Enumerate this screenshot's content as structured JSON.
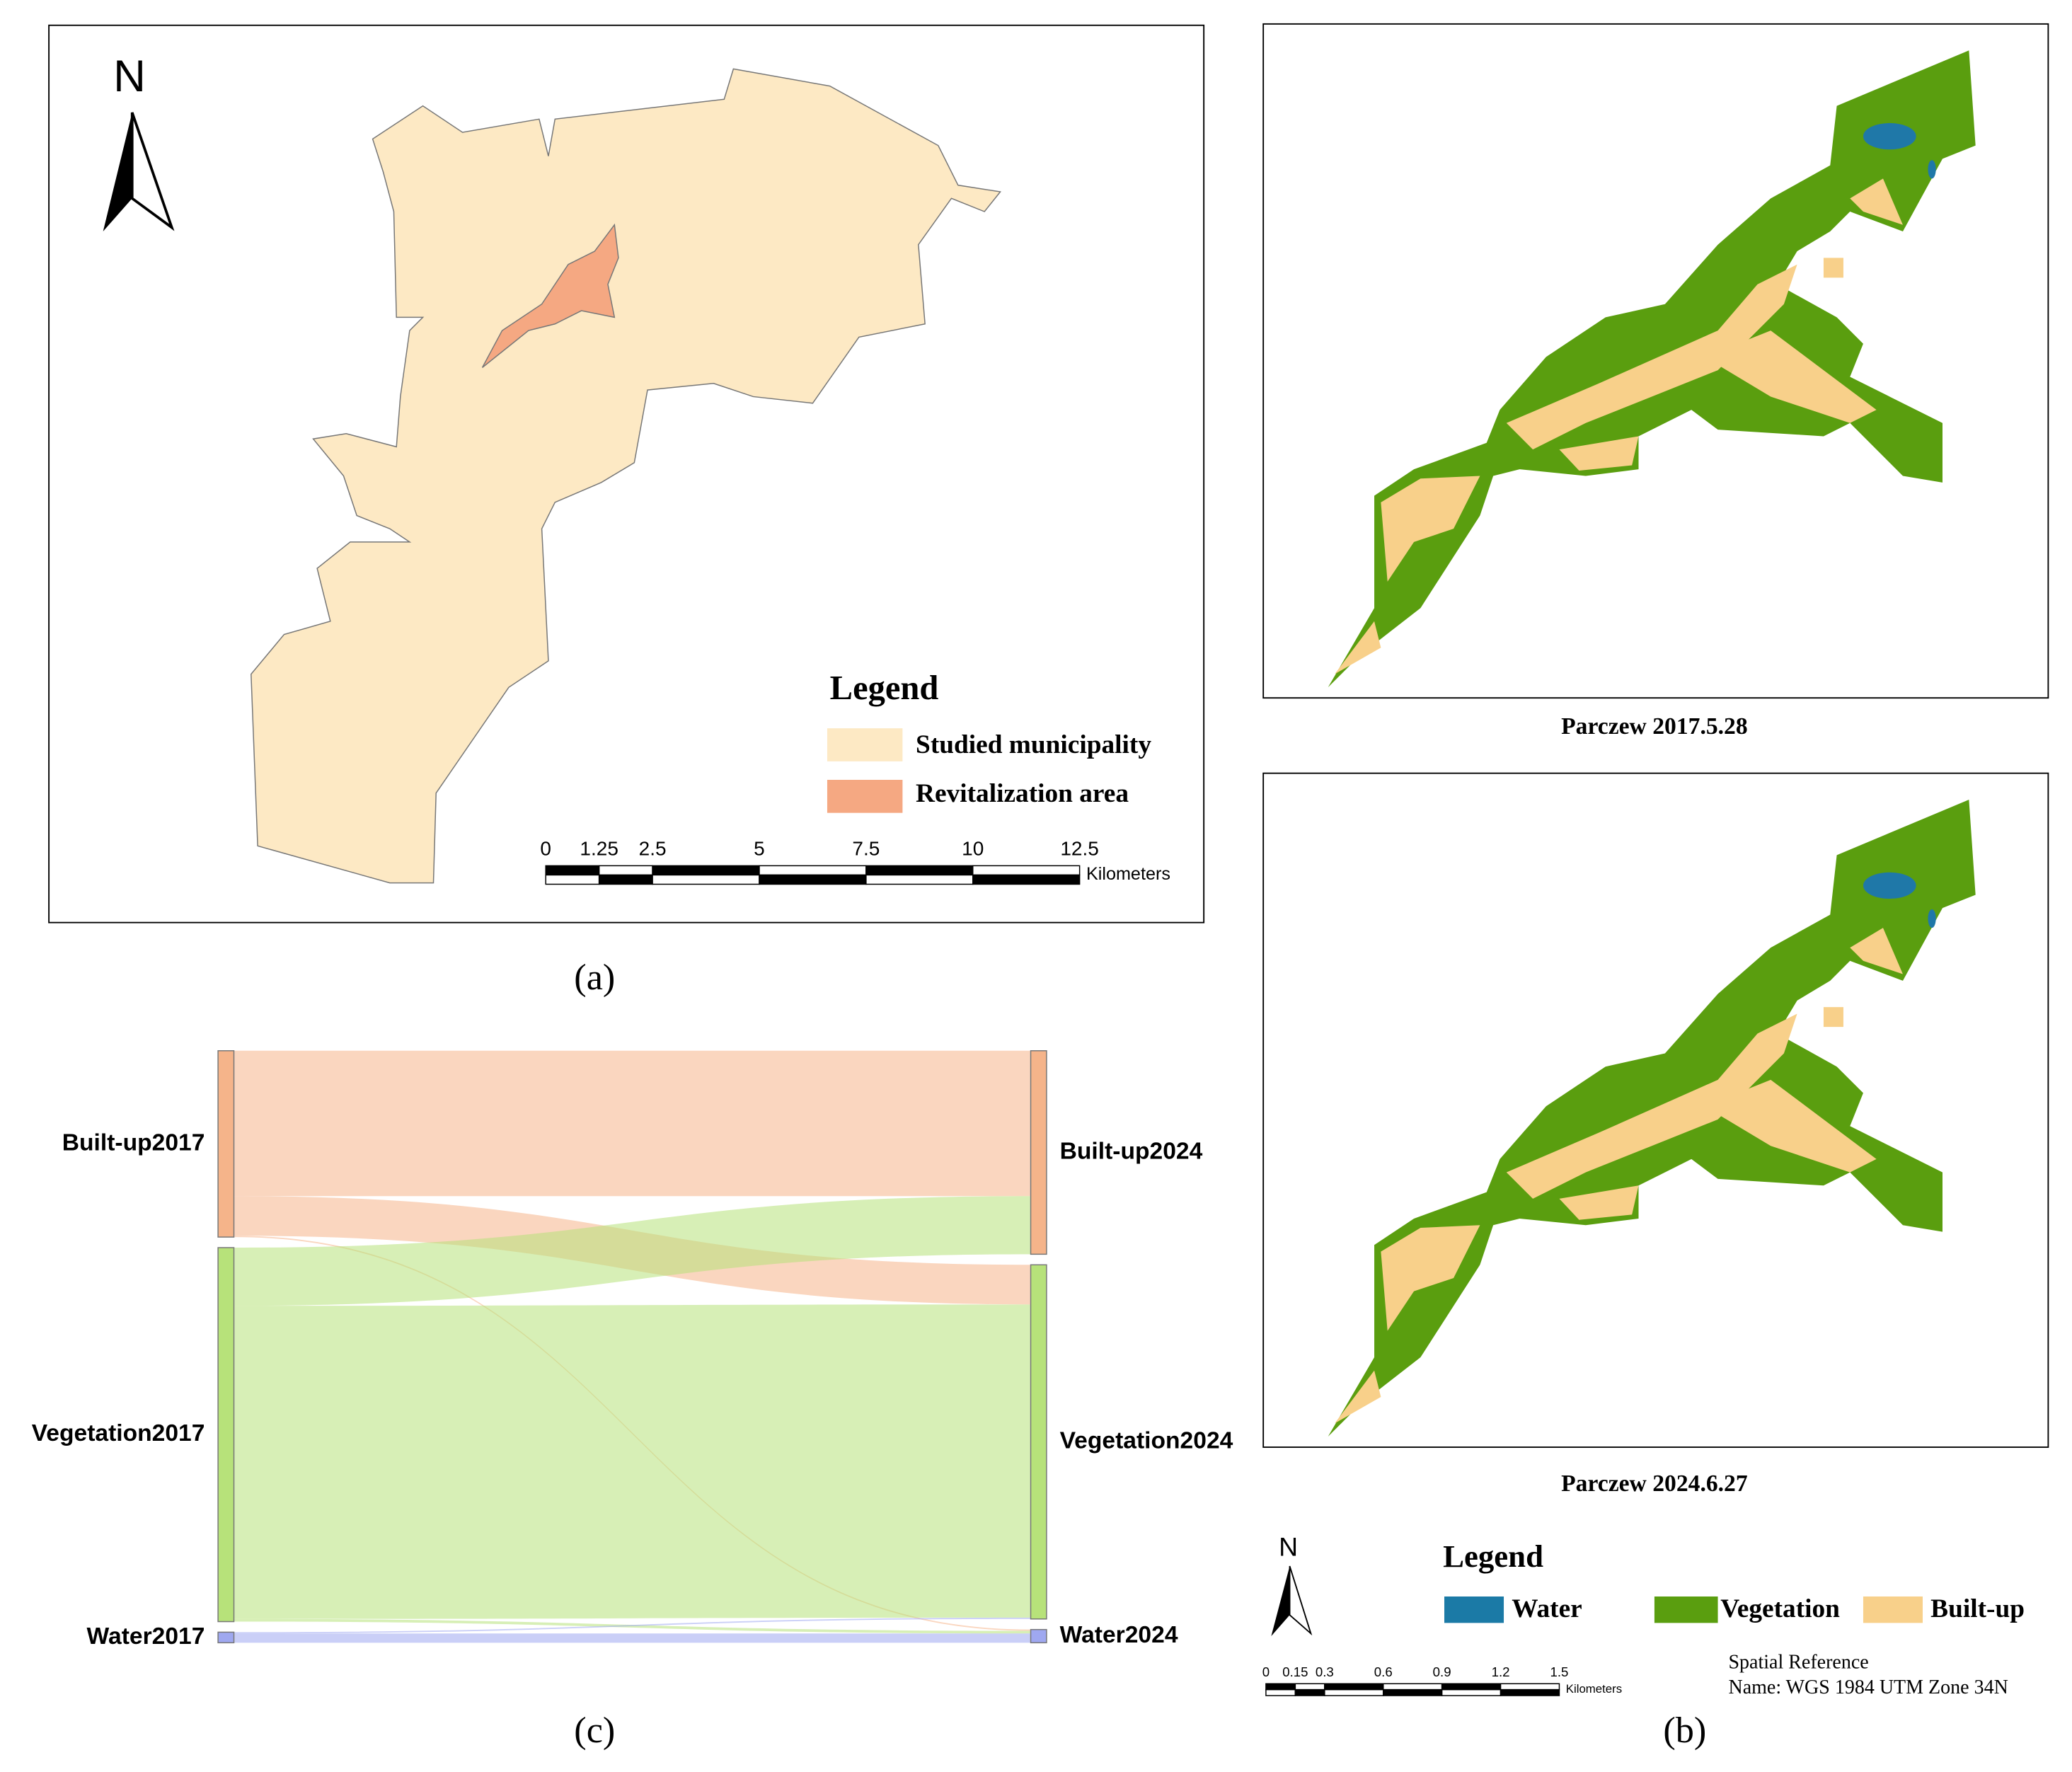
{
  "panel_a": {
    "north": "N",
    "legend_title": "Legend",
    "legend": [
      "Studied municipality",
      "Revitalization area"
    ],
    "scale_ticks": [
      0,
      1.25,
      2.5,
      5,
      7.5,
      10,
      12.5
    ],
    "scale_unit": "Kilometers",
    "caption": "(a)"
  },
  "panel_b": {
    "map_titles": [
      "Parczew 2017.5.28",
      "Parczew 2024.6.27"
    ],
    "north": "N",
    "legend_title": "Legend",
    "legend": [
      "Water",
      "Vegetation",
      "Built-up"
    ],
    "scale_ticks": [
      0,
      0.15,
      0.3,
      0.6,
      0.9,
      1.2,
      1.5
    ],
    "scale_unit": "Kilometers",
    "spatial_reference": [
      "Spatial Reference",
      "Name: WGS 1984 UTM Zone 34N"
    ],
    "caption": "(b)"
  },
  "chart_data": {
    "type": "sankey",
    "nodes": [
      {
        "name": "Built-up2017",
        "color": "#f5b48a"
      },
      {
        "name": "Vegetation2017",
        "color": "#b7e27a"
      },
      {
        "name": "Water2017",
        "color": "#9fa8f0"
      },
      {
        "name": "Built-up2024",
        "color": "#f5b48a"
      },
      {
        "name": "Vegetation2024",
        "color": "#b7e27a"
      },
      {
        "name": "Water2024",
        "color": "#9fa8f0"
      }
    ],
    "links": [
      {
        "source": 0,
        "target": 3,
        "value": 110
      },
      {
        "source": 0,
        "target": 4,
        "value": 30
      },
      {
        "source": 0,
        "target": 5,
        "value": 1
      },
      {
        "source": 1,
        "target": 3,
        "value": 44
      },
      {
        "source": 1,
        "target": 4,
        "value": 237
      },
      {
        "source": 1,
        "target": 5,
        "value": 2
      },
      {
        "source": 2,
        "target": 4,
        "value": 1
      },
      {
        "source": 2,
        "target": 5,
        "value": 7
      }
    ],
    "caption": "(c)"
  }
}
